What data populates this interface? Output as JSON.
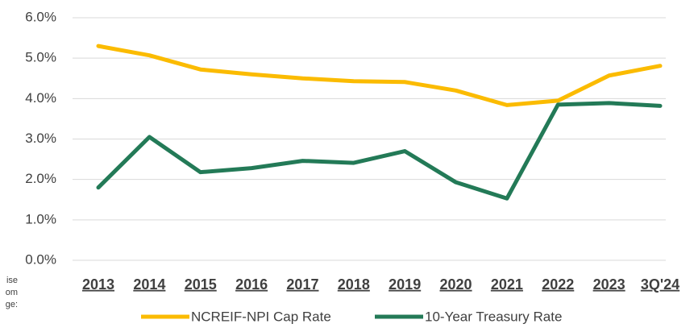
{
  "chart_data": {
    "type": "line",
    "categories": [
      "2013",
      "2014",
      "2015",
      "2016",
      "2017",
      "2018",
      "2019",
      "2020",
      "2021",
      "2022",
      "2023",
      "3Q'24"
    ],
    "series": [
      {
        "name": "NCREIF-NPI Cap Rate",
        "color": "#fbbb00",
        "values": [
          5.3,
          5.07,
          4.72,
          4.6,
          4.5,
          4.43,
          4.41,
          4.2,
          3.84,
          3.95,
          4.57,
          4.81
        ]
      },
      {
        "name": "10-Year Treasury Rate",
        "color": "#237a57",
        "values": [
          1.8,
          3.05,
          2.18,
          2.28,
          2.46,
          2.41,
          2.7,
          1.93,
          1.53,
          3.85,
          3.89,
          3.82
        ]
      }
    ],
    "ylim": [
      0,
      6
    ],
    "yticks": [
      {
        "value": 0,
        "label": "0.0%"
      },
      {
        "value": 1,
        "label": "1.0%"
      },
      {
        "value": 2,
        "label": "2.0%"
      },
      {
        "value": 3,
        "label": "3.0%"
      },
      {
        "value": 4,
        "label": "4.0%"
      },
      {
        "value": 5,
        "label": "5.0%"
      },
      {
        "value": 6,
        "label": "6.0%"
      }
    ],
    "grid": true,
    "legend": "bottom",
    "annotations": [
      "ise",
      "om",
      "ge:"
    ]
  }
}
